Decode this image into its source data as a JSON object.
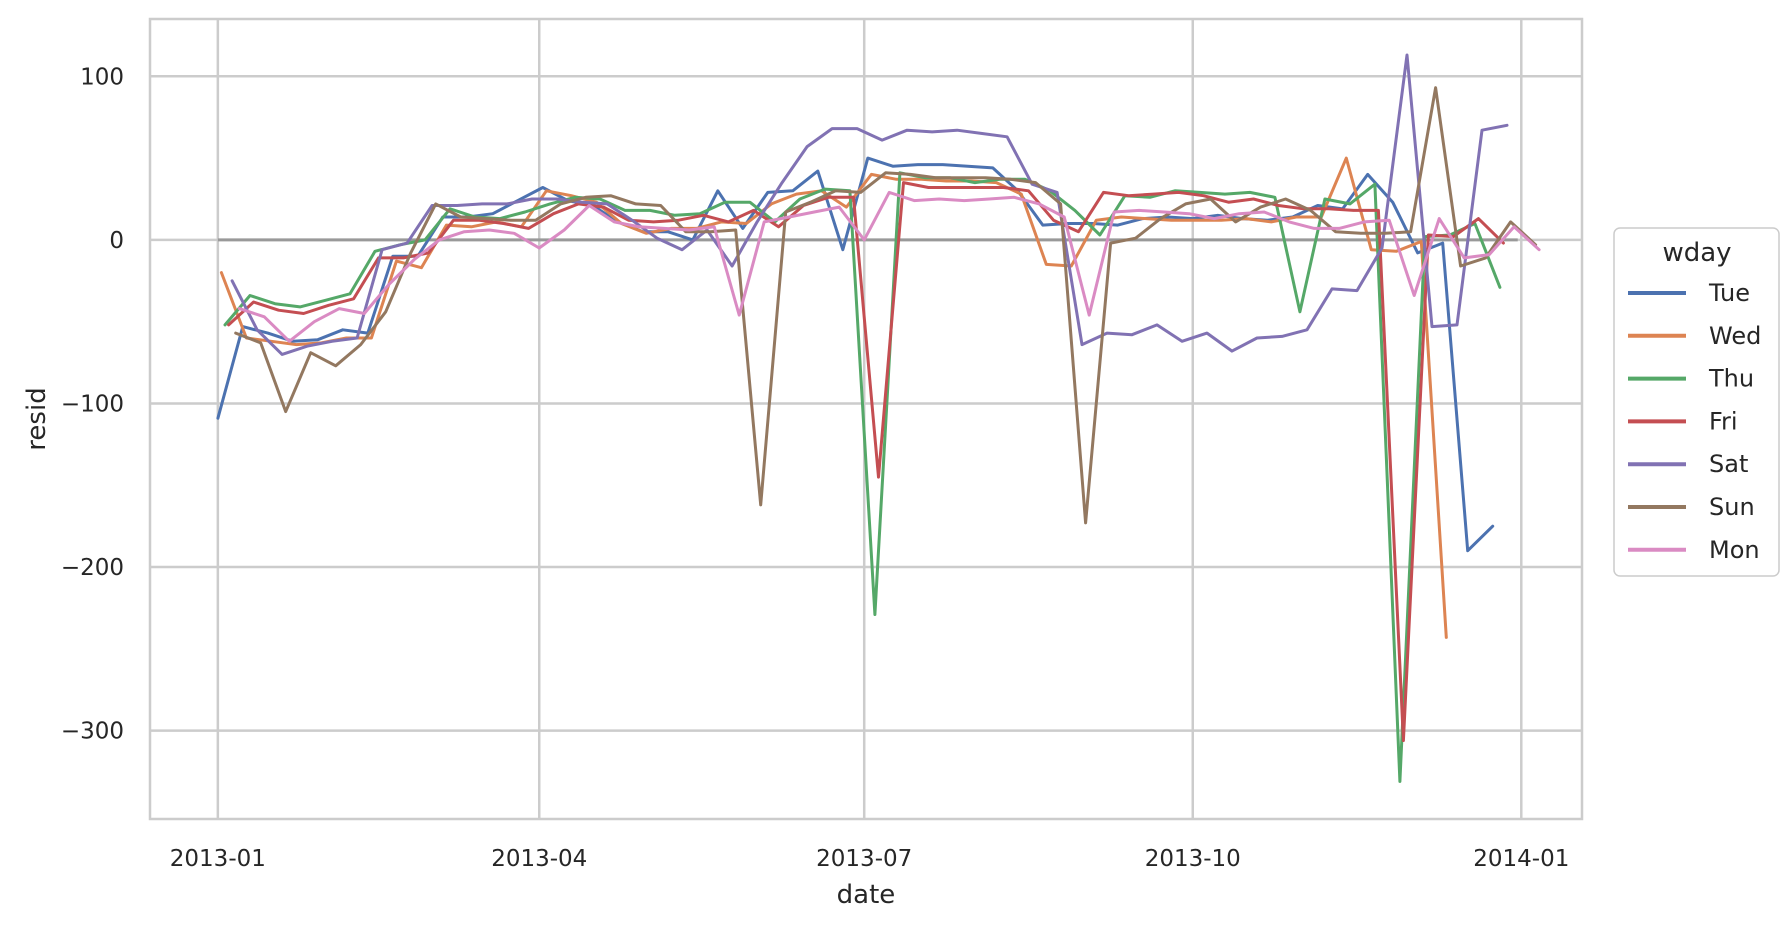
{
  "chart_data": {
    "type": "line",
    "xlabel": "date",
    "ylabel": "resid",
    "xlim": [
      "2012-12-13",
      "2014-01-18"
    ],
    "ylim": [
      -354,
      135
    ],
    "x_ticks": [
      {
        "date": "2013-01-01",
        "label": "2013-01"
      },
      {
        "date": "2013-04-01",
        "label": "2013-04"
      },
      {
        "date": "2013-07-01",
        "label": "2013-07"
      },
      {
        "date": "2013-10-01",
        "label": "2013-10"
      },
      {
        "date": "2014-01-01",
        "label": "2014-01"
      }
    ],
    "y_ticks": [
      {
        "value": 100,
        "label": "100"
      },
      {
        "value": 0,
        "label": "0"
      },
      {
        "value": -100,
        "label": "−100"
      },
      {
        "value": -200,
        "label": "−200"
      },
      {
        "value": -300,
        "label": "−300"
      }
    ],
    "grid": true,
    "reference_line": {
      "y": 0,
      "color": "#999999"
    },
    "legend": {
      "title": "wday",
      "placement": "right"
    },
    "series": [
      {
        "name": "Tue",
        "color": "#4c72b0",
        "start": "2013-01-01",
        "values": [
          -109,
          -53,
          -57,
          -62,
          -61,
          -55,
          -57,
          -10,
          -10,
          14,
          14,
          16,
          24,
          32,
          24,
          21,
          11,
          5,
          5,
          0,
          30,
          7,
          29,
          30,
          42,
          -6,
          50,
          45,
          46,
          46,
          45,
          44,
          30,
          9,
          10,
          10,
          9,
          13,
          14,
          13,
          15,
          13,
          12,
          14,
          21,
          19,
          40,
          23,
          -8,
          -2,
          -190,
          -175
        ]
      },
      {
        "name": "Wed",
        "color": "#dd8452",
        "start": "2013-01-02",
        "values": [
          -20,
          -60,
          -62,
          -64,
          -63,
          -60,
          -60,
          -13,
          -17,
          9,
          8,
          11,
          8,
          30,
          27,
          23,
          10,
          4,
          7,
          7,
          11,
          10,
          22,
          28,
          30,
          20,
          40,
          37,
          37,
          36,
          36,
          35,
          28,
          -15,
          -16,
          12,
          14,
          13,
          12,
          12,
          12,
          13,
          11,
          14,
          14,
          50,
          -6,
          -7,
          -1,
          -243
        ]
      },
      {
        "name": "Thu",
        "color": "#55a868",
        "start": "2013-01-03",
        "values": [
          -52,
          -34,
          -39,
          -41,
          -37,
          -33,
          -7,
          -3,
          0,
          19,
          14,
          13,
          17,
          22,
          26,
          25,
          18,
          18,
          15,
          16,
          23,
          23,
          11,
          25,
          31,
          30,
          -229,
          41,
          38,
          38,
          35,
          37,
          37,
          30,
          18,
          3,
          27,
          26,
          30,
          29,
          28,
          29,
          26,
          -44,
          25,
          22,
          34,
          -331,
          2,
          3,
          10,
          -29
        ]
      },
      {
        "name": "Fri",
        "color": "#c44e52",
        "start": "2013-01-04",
        "values": [
          -52,
          -38,
          -43,
          -45,
          -40,
          -36,
          -11,
          -11,
          -8,
          12,
          12,
          10,
          7,
          16,
          22,
          20,
          12,
          11,
          12,
          15,
          11,
          18,
          8,
          21,
          26,
          26,
          -145,
          35,
          32,
          32,
          32,
          32,
          30,
          12,
          5,
          29,
          27,
          28,
          29,
          27,
          23,
          25,
          21,
          19,
          19,
          18,
          18,
          -306,
          3,
          2,
          13,
          -2
        ]
      },
      {
        "name": "Sat",
        "color": "#8172b3",
        "start": "2013-01-05",
        "values": [
          -25,
          -55,
          -70,
          -65,
          -62,
          -60,
          -6,
          -2,
          21,
          21,
          22,
          22,
          25,
          25,
          23,
          22,
          12,
          1,
          -6,
          6,
          -16,
          11,
          35,
          57,
          68,
          68,
          61,
          67,
          66,
          67,
          65,
          63,
          34,
          29,
          -64,
          -57,
          -58,
          -52,
          -62,
          -57,
          -68,
          -60,
          -59,
          -55,
          -30,
          -31,
          -5,
          113,
          -53,
          -52,
          67,
          70
        ]
      },
      {
        "name": "Sun",
        "color": "#937860",
        "start": "2013-01-06",
        "values": [
          -57,
          -63,
          -105,
          -69,
          -77,
          -64,
          -44,
          -8,
          22,
          14,
          13,
          12,
          12,
          22,
          26,
          27,
          22,
          21,
          5,
          5,
          6,
          -162,
          17,
          23,
          30,
          29,
          41,
          40,
          38,
          38,
          38,
          37,
          35,
          22,
          -173,
          -2,
          1,
          13,
          22,
          25,
          11,
          20,
          25,
          18,
          5,
          4,
          4,
          5,
          93,
          -16,
          -11,
          11,
          -3
        ]
      },
      {
        "name": "Mon",
        "color": "#da8bc3",
        "start": "2013-01-07",
        "values": [
          -42,
          -47,
          -62,
          -50,
          -42,
          -45,
          -27,
          -12,
          0,
          5,
          6,
          4,
          -5,
          6,
          21,
          11,
          8,
          7,
          6,
          8,
          -46,
          11,
          14,
          17,
          20,
          0,
          29,
          24,
          25,
          24,
          25,
          26,
          22,
          14,
          -46,
          17,
          18,
          17,
          16,
          13,
          16,
          17,
          11,
          7,
          7,
          11,
          12,
          -34,
          13,
          -11,
          -9,
          8,
          -6
        ]
      }
    ]
  }
}
